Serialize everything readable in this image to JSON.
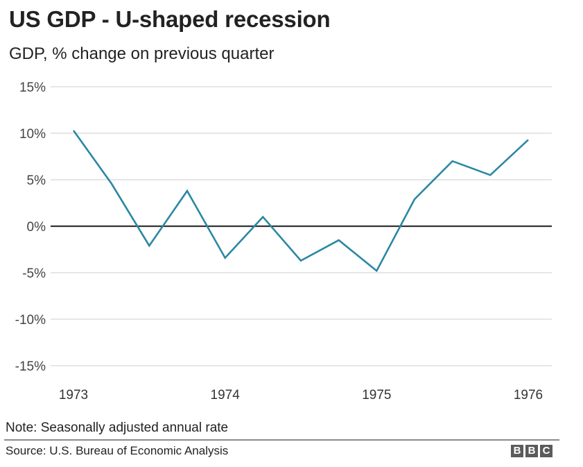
{
  "header": {
    "title": "US GDP - U-shaped recession",
    "subtitle": "GDP, % change on previous quarter"
  },
  "footer": {
    "note": "Note: Seasonally adjusted annual rate",
    "source": "Source: U.S. Bureau of Economic Analysis",
    "logo_letters": [
      "B",
      "B",
      "C"
    ]
  },
  "colors": {
    "line": "#2a87a3",
    "zero_line": "#333333",
    "grid": "#dddddd",
    "logo": "#5b5b5b"
  },
  "chart_data": {
    "type": "line",
    "title": "US GDP - U-shaped recession",
    "subtitle": "GDP, % change on previous quarter",
    "xlabel": "",
    "ylabel": "",
    "x": [
      "1973 Q1",
      "1973 Q2",
      "1973 Q3",
      "1973 Q4",
      "1974 Q1",
      "1974 Q2",
      "1974 Q3",
      "1974 Q4",
      "1975 Q1",
      "1975 Q2",
      "1975 Q3",
      "1975 Q4",
      "1976 Q1"
    ],
    "series": [
      {
        "name": "GDP % change",
        "values": [
          10.3,
          4.6,
          -2.1,
          3.8,
          -3.4,
          1.0,
          -3.7,
          -1.5,
          -4.8,
          2.9,
          7.0,
          5.5,
          9.3
        ]
      }
    ],
    "ylim": [
      -15,
      15
    ],
    "yticks": [
      15,
      10,
      5,
      0,
      -5,
      -10,
      -15
    ],
    "ytick_labels": [
      "15%",
      "10%",
      "5%",
      "0%",
      "-5%",
      "-10%",
      "-15%"
    ],
    "xticks": [
      {
        "label": "1973",
        "index": 0
      },
      {
        "label": "1974",
        "index": 4
      },
      {
        "label": "1975",
        "index": 8
      },
      {
        "label": "1976",
        "index": 12
      }
    ],
    "grid": true,
    "legend": "none",
    "notes": [
      "Note: Seasonally adjusted annual rate"
    ],
    "source": "Source: U.S. Bureau of Economic Analysis"
  }
}
